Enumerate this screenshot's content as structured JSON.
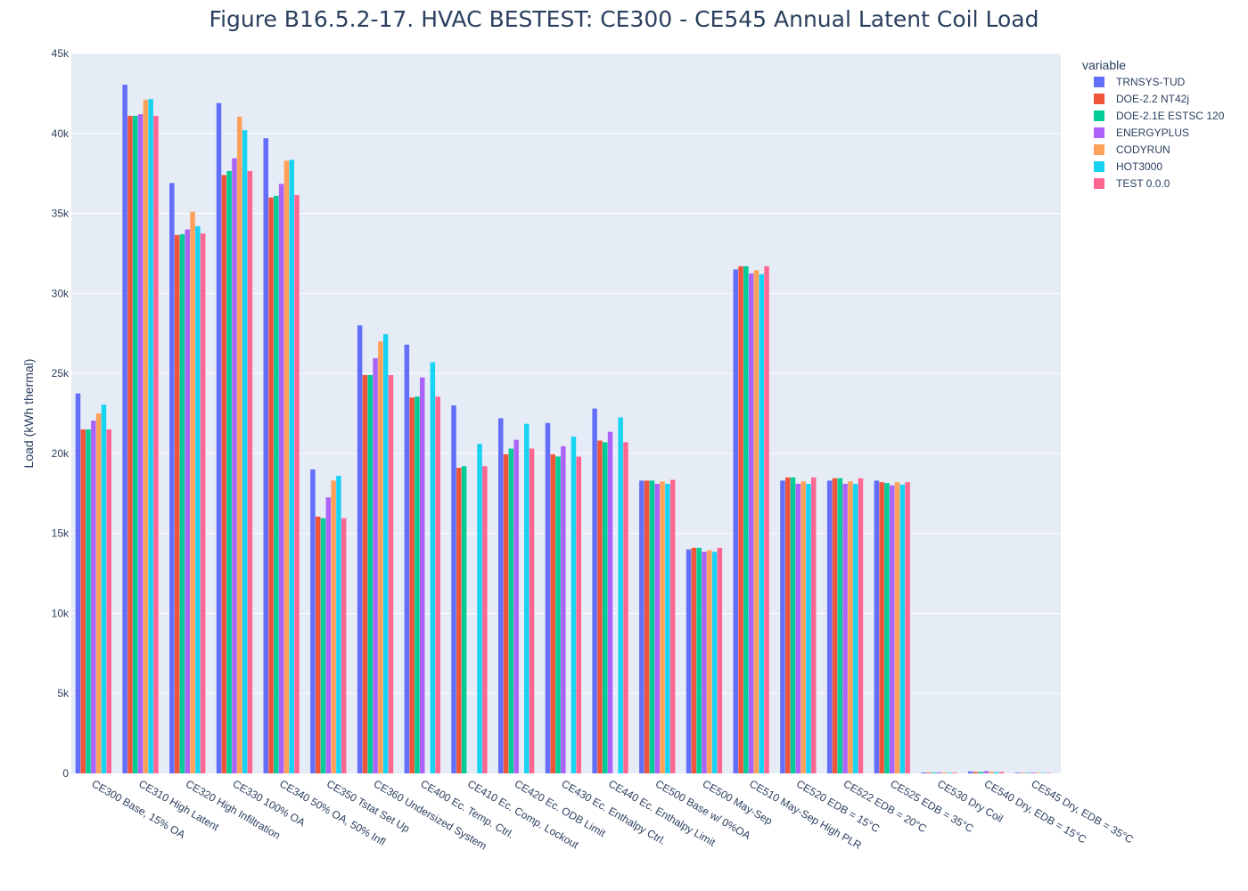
{
  "chart_data": {
    "type": "bar",
    "title": "Figure B16.5.2-17. HVAC BESTEST: CE300 - CE545 Annual Latent Coil Load",
    "ylabel": "Load  (kWh thermal)",
    "xlabel": "",
    "ylim": [
      0,
      45000
    ],
    "yticks": [
      0,
      5000,
      10000,
      15000,
      20000,
      25000,
      30000,
      35000,
      40000,
      45000
    ],
    "ytick_labels": [
      "0",
      "5k",
      "10k",
      "15k",
      "20k",
      "25k",
      "30k",
      "35k",
      "40k",
      "45k"
    ],
    "grid": true,
    "legend_title": "variable",
    "legend_position": "top-right",
    "plot_bgcolor": "#e5ecf6",
    "categories": [
      "CE300 Base, 15% OA",
      "CE310 High Latent",
      "CE320 High Infiltration",
      "CE330 100% OA",
      "CE340 50% OA, 50% Infl",
      "CE350 Tstat Set Up",
      "CE360 Undersized System",
      "CE400 Ec. Temp. Ctrl.",
      "CE410 Ec. Comp. Lockout",
      "CE420 Ec. ODB Limit",
      "CE430 Ec. Enthalpy Ctrl.",
      "CE440 Ec. Enthalpy Limit",
      "CE500 Base w/ 0%OA",
      "CE500 May-Sep",
      "CE510 May-Sep High PLR",
      "CE520 EDB = 15°C",
      "CE522 EDB = 20°C",
      "CE525 EDB = 35°C",
      "CE530 Dry Coil",
      "CE540 Dry, EDB = 15°C",
      "CE545 Dry, EDB = 35°C"
    ],
    "series": [
      {
        "name": "TRNSYS-TUD",
        "color": "#636efa",
        "values": [
          23750,
          43050,
          36900,
          41900,
          39700,
          19000,
          28000,
          26800,
          23000,
          22200,
          21900,
          22800,
          18300,
          14000,
          31500,
          18300,
          18300,
          18300,
          60,
          120,
          40
        ]
      },
      {
        "name": "DOE-2.2 NT42j",
        "color": "#EF553B",
        "values": [
          21500,
          41100,
          33650,
          37400,
          36000,
          16050,
          24900,
          23500,
          19100,
          19950,
          19950,
          20800,
          18300,
          14100,
          31700,
          18500,
          18450,
          18200,
          50,
          90,
          30
        ]
      },
      {
        "name": "DOE-2.1E ESTSC 120",
        "color": "#00cc96",
        "values": [
          21500,
          41100,
          33700,
          37650,
          36100,
          15950,
          24900,
          23550,
          19200,
          20300,
          19800,
          20700,
          18300,
          14100,
          31700,
          18500,
          18450,
          18150,
          50,
          90,
          30
        ]
      },
      {
        "name": "ENERGYPLUS",
        "color": "#ab63fa",
        "values": [
          22050,
          41200,
          34000,
          38450,
          36850,
          17250,
          25950,
          24750,
          0,
          20850,
          20450,
          21350,
          18100,
          13850,
          31250,
          18100,
          18100,
          18000,
          60,
          140,
          50
        ]
      },
      {
        "name": "CODYRUN",
        "color": "#FFA15A",
        "values": [
          22500,
          42100,
          35100,
          41050,
          38300,
          18300,
          27000,
          0,
          0,
          0,
          0,
          0,
          18250,
          13950,
          31450,
          18250,
          18250,
          18200,
          60,
          100,
          40
        ]
      },
      {
        "name": "HOT3000",
        "color": "#19d3f3",
        "values": [
          23050,
          42150,
          34200,
          40200,
          38350,
          18600,
          27450,
          25700,
          20600,
          21850,
          21050,
          22250,
          18100,
          13850,
          31200,
          18100,
          18100,
          18050,
          40,
          80,
          30
        ]
      },
      {
        "name": "TEST 0.0.0",
        "color": "#FF6692",
        "values": [
          21500,
          41100,
          33750,
          37650,
          36150,
          15950,
          24900,
          23550,
          19200,
          20300,
          19800,
          20700,
          18350,
          14100,
          31700,
          18500,
          18450,
          18200,
          50,
          90,
          30
        ]
      }
    ]
  }
}
